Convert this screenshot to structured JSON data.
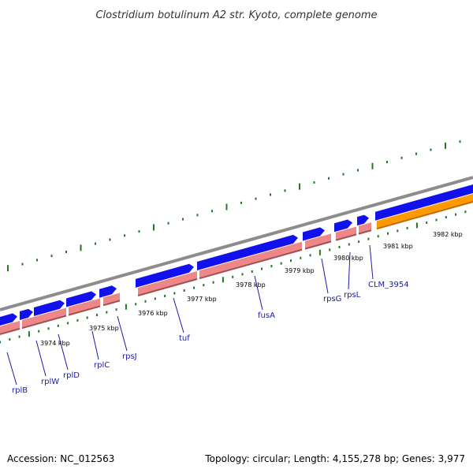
{
  "title": "Clostridium botulinum A2 str. Kyoto, complete genome",
  "footer": {
    "accession": "Accession: NC_012563",
    "summary": "Topology: circular; Length: 4,155,278 bp; Genes: 3,977"
  },
  "colors": {
    "backbone": "#8c8c8c",
    "gene": "#1111ee",
    "gene_highlight": "#ff9900",
    "cds": "#ee8888",
    "cds_highlight": "#ff9900",
    "ticks": "#227722",
    "labels": "#1a1aa6"
  },
  "axis_labels": [
    "3974 kbp",
    "3975 kbp",
    "3976 kbp",
    "3977 kbp",
    "3978 kbp",
    "3979 kbp",
    "3980 kbp",
    "3981 kbp",
    "3982 kbp"
  ],
  "genes": [
    {
      "name": "rplB",
      "highlight": false
    },
    {
      "name": "rplW",
      "highlight": false
    },
    {
      "name": "rplD",
      "highlight": false
    },
    {
      "name": "rplC",
      "highlight": false
    },
    {
      "name": "rpsJ",
      "highlight": false
    },
    {
      "name": "tuf",
      "highlight": false
    },
    {
      "name": "fusA",
      "highlight": false
    },
    {
      "name": "rpsG",
      "highlight": false
    },
    {
      "name": "rpsL",
      "highlight": false
    },
    {
      "name": "CLM_3954",
      "highlight": true
    }
  ]
}
